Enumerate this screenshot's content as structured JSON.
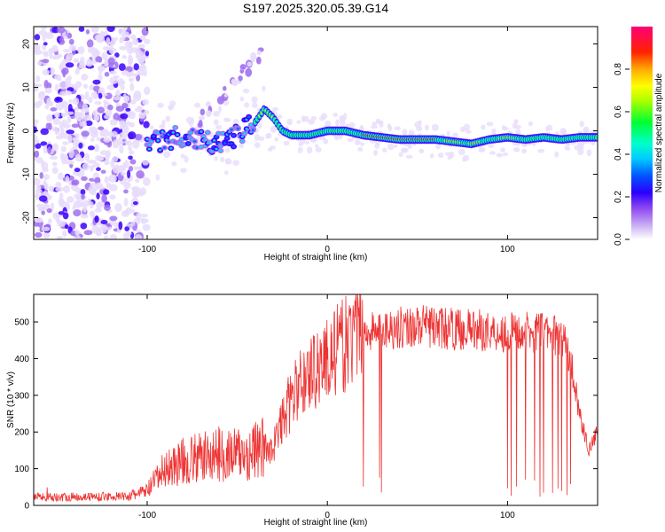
{
  "title": "S197.2025.320.05.39.G14",
  "chart_data": [
    {
      "type": "heatmap",
      "xlabel": "Height of straight line (km)",
      "ylabel": "Frequency (Hz)",
      "xlim": [
        -163,
        150
      ],
      "ylim": [
        -25,
        24
      ],
      "x_ticks": [
        -100,
        0,
        100
      ],
      "y_ticks": [
        -20,
        -10,
        0,
        10,
        20
      ],
      "colorbar": {
        "label": "Normalized spectral amplitude",
        "range": [
          0,
          1
        ],
        "ticks": [
          0.0,
          0.2,
          0.4,
          0.6,
          0.8
        ]
      },
      "ridge": {
        "x": [
          -100,
          -90,
          -80,
          -70,
          -60,
          -50,
          -40,
          -35,
          -30,
          -25,
          -20,
          -10,
          0,
          10,
          20,
          40,
          60,
          70,
          80,
          90,
          100,
          110,
          120,
          130,
          140,
          150
        ],
        "y": [
          -3,
          -2,
          -1,
          -2,
          -3,
          -1,
          2,
          5,
          3,
          0,
          -1,
          -1,
          0,
          0,
          -1,
          -2,
          -2,
          -2.5,
          -3,
          -2,
          -1.5,
          -2,
          -1.5,
          -2,
          -1.5,
          -1.5
        ]
      }
    },
    {
      "type": "line",
      "xlabel": "Height of straight line (km)",
      "ylabel": "SNR (10 * v/v)",
      "xlim": [
        -163,
        150
      ],
      "ylim": [
        0,
        575
      ],
      "x_ticks": [
        -100,
        0,
        100
      ],
      "y_ticks": [
        0,
        100,
        200,
        300,
        400,
        500
      ],
      "color": "#ee3333",
      "envelope": {
        "x": [
          -163,
          -110,
          -100,
          -90,
          -80,
          -70,
          -60,
          -50,
          -45,
          -40,
          -30,
          -25,
          -20,
          -15,
          -10,
          -5,
          0,
          5,
          10,
          15,
          20,
          30,
          40,
          50,
          60,
          70,
          80,
          90,
          100,
          110,
          120,
          130,
          135,
          140,
          145,
          150
        ],
        "y": [
          22,
          25,
          40,
          100,
          120,
          130,
          140,
          140,
          135,
          150,
          160,
          230,
          290,
          330,
          360,
          380,
          400,
          420,
          440,
          460,
          470,
          480,
          485,
          490,
          485,
          480,
          480,
          475,
          470,
          475,
          470,
          460,
          400,
          250,
          150,
          200
        ]
      },
      "dropouts": [
        20,
        29,
        30,
        100,
        102,
        105,
        110,
        115,
        118,
        120,
        125,
        128,
        130,
        133,
        135
      ]
    }
  ]
}
